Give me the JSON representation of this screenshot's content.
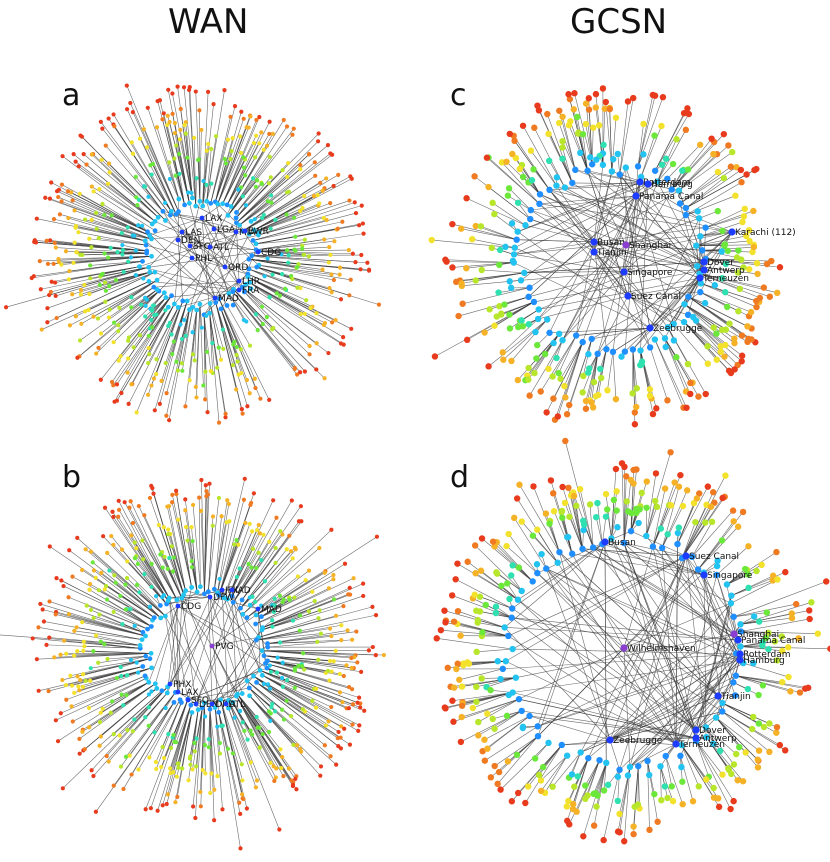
{
  "columns": {
    "left": "WAN",
    "right": "GCSN"
  },
  "panels": [
    {
      "letter": "a",
      "network": "WAN",
      "hubs": [
        "LAX",
        "LGA",
        "MIA",
        "LAS",
        "DEN",
        "EWR",
        "SFO",
        "ATL",
        "PHL",
        "ORD",
        "CDG",
        "LHR",
        "FRA",
        "MAD"
      ]
    },
    {
      "letter": "b",
      "network": "WAN",
      "hubs": [
        "JFK",
        "IAD",
        "DFW",
        "CDG",
        "MAD",
        "PVG",
        "PHX",
        "LAX",
        "SFO",
        "DEN",
        "ORD",
        "ATL"
      ]
    },
    {
      "letter": "c",
      "network": "GCSN",
      "hubs": [
        "Rotterdam",
        "Hamburg",
        "Panama Canal",
        "Busan",
        "Tianjin",
        "Shanghai",
        "Singapore",
        "Karachi (112)",
        "Dover",
        "Antwerp",
        "Terneuzen",
        "Suez Canal",
        "Zeebrugge"
      ]
    },
    {
      "letter": "d",
      "network": "GCSN",
      "hubs": [
        "Busan",
        "Suez Canal",
        "Singapore",
        "Wilhelmshaven",
        "Shanghai",
        "Panama Canal",
        "Rotterdam",
        "Hamburg",
        "Tianjin",
        "Dover",
        "Antwerp",
        "Terneuzen",
        "Zeebrugge"
      ]
    }
  ],
  "colors": {
    "edge": "#3a3a3a",
    "scale": [
      "#1e3cff",
      "#1f8fff",
      "#22c3f0",
      "#2fe0b0",
      "#6be83a",
      "#b8e62a",
      "#f3e22c",
      "#f6b226",
      "#f07a22",
      "#e83a1c"
    ]
  }
}
